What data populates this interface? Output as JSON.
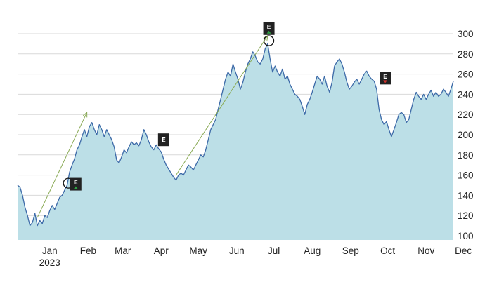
{
  "chart_data": {
    "type": "area",
    "title": "",
    "xlabel": "",
    "ylabel": "",
    "ylim": [
      95,
      310
    ],
    "y_ticks": [
      "100",
      "120",
      "140",
      "160",
      "180",
      "200",
      "220",
      "240",
      "260",
      "280",
      "300"
    ],
    "x_ticks": [
      {
        "label": "Jan",
        "date": "2023-01-15"
      },
      {
        "label": "Feb",
        "date": "2023-02-15"
      },
      {
        "label": "Mar",
        "date": "2023-03-15"
      },
      {
        "label": "Apr",
        "date": "2023-04-15"
      },
      {
        "label": "May",
        "date": "2023-05-15"
      },
      {
        "label": "Jun",
        "date": "2023-06-15"
      },
      {
        "label": "Jul",
        "date": "2023-07-15"
      },
      {
        "label": "Aug",
        "date": "2023-08-15"
      },
      {
        "label": "Sep",
        "date": "2023-09-15"
      },
      {
        "label": "Oct",
        "date": "2023-10-15"
      },
      {
        "label": "Nov",
        "date": "2023-11-15"
      },
      {
        "label": "Dec",
        "date": "2023-12-15"
      }
    ],
    "year_label": "2023",
    "grid": "horizontal",
    "colors": {
      "fill": "#bcdfe7",
      "line": "#3d6aa8",
      "trend": "#8aaa55",
      "up": "#2ea043",
      "down": "#d0312d"
    },
    "series": [
      {
        "values": [
          [
            "2022-12-20",
            150
          ],
          [
            "2022-12-22",
            148
          ],
          [
            "2022-12-24",
            140
          ],
          [
            "2022-12-26",
            128
          ],
          [
            "2022-12-28",
            120
          ],
          [
            "2022-12-30",
            110
          ],
          [
            "2023-01-01",
            113
          ],
          [
            "2023-01-03",
            122
          ],
          [
            "2023-01-05",
            110
          ],
          [
            "2023-01-07",
            115
          ],
          [
            "2023-01-09",
            112
          ],
          [
            "2023-01-11",
            120
          ],
          [
            "2023-01-13",
            118
          ],
          [
            "2023-01-15",
            125
          ],
          [
            "2023-01-17",
            130
          ],
          [
            "2023-01-19",
            126
          ],
          [
            "2023-01-21",
            132
          ],
          [
            "2023-01-23",
            138
          ],
          [
            "2023-01-25",
            140
          ],
          [
            "2023-01-27",
            145
          ],
          [
            "2023-01-29",
            150
          ],
          [
            "2023-01-31",
            163
          ],
          [
            "2023-02-02",
            170
          ],
          [
            "2023-02-04",
            176
          ],
          [
            "2023-02-06",
            185
          ],
          [
            "2023-02-08",
            190
          ],
          [
            "2023-02-10",
            198
          ],
          [
            "2023-02-12",
            205
          ],
          [
            "2023-02-14",
            198
          ],
          [
            "2023-02-16",
            208
          ],
          [
            "2023-02-18",
            212
          ],
          [
            "2023-02-20",
            205
          ],
          [
            "2023-02-22",
            200
          ],
          [
            "2023-02-24",
            210
          ],
          [
            "2023-02-26",
            205
          ],
          [
            "2023-02-28",
            198
          ],
          [
            "2023-03-02",
            205
          ],
          [
            "2023-03-04",
            200
          ],
          [
            "2023-03-06",
            195
          ],
          [
            "2023-03-08",
            188
          ],
          [
            "2023-03-10",
            175
          ],
          [
            "2023-03-12",
            172
          ],
          [
            "2023-03-14",
            178
          ],
          [
            "2023-03-16",
            185
          ],
          [
            "2023-03-18",
            182
          ],
          [
            "2023-03-20",
            188
          ],
          [
            "2023-03-22",
            193
          ],
          [
            "2023-03-24",
            190
          ],
          [
            "2023-03-26",
            192
          ],
          [
            "2023-03-28",
            189
          ],
          [
            "2023-03-30",
            195
          ],
          [
            "2023-04-01",
            205
          ],
          [
            "2023-04-03",
            200
          ],
          [
            "2023-04-05",
            193
          ],
          [
            "2023-04-07",
            188
          ],
          [
            "2023-04-09",
            185
          ],
          [
            "2023-04-11",
            190
          ],
          [
            "2023-04-13",
            186
          ],
          [
            "2023-04-15",
            183
          ],
          [
            "2023-04-17",
            176
          ],
          [
            "2023-04-19",
            170
          ],
          [
            "2023-04-21",
            166
          ],
          [
            "2023-04-23",
            162
          ],
          [
            "2023-04-25",
            158
          ],
          [
            "2023-04-27",
            155
          ],
          [
            "2023-04-29",
            160
          ],
          [
            "2023-05-01",
            162
          ],
          [
            "2023-05-03",
            160
          ],
          [
            "2023-05-05",
            165
          ],
          [
            "2023-05-07",
            170
          ],
          [
            "2023-05-09",
            168
          ],
          [
            "2023-05-11",
            165
          ],
          [
            "2023-05-13",
            170
          ],
          [
            "2023-05-15",
            175
          ],
          [
            "2023-05-17",
            180
          ],
          [
            "2023-05-19",
            178
          ],
          [
            "2023-05-21",
            185
          ],
          [
            "2023-05-23",
            195
          ],
          [
            "2023-05-25",
            205
          ],
          [
            "2023-05-27",
            210
          ],
          [
            "2023-05-29",
            215
          ],
          [
            "2023-05-31",
            225
          ],
          [
            "2023-06-02",
            235
          ],
          [
            "2023-06-04",
            245
          ],
          [
            "2023-06-06",
            255
          ],
          [
            "2023-06-08",
            262
          ],
          [
            "2023-06-10",
            258
          ],
          [
            "2023-06-12",
            270
          ],
          [
            "2023-06-14",
            262
          ],
          [
            "2023-06-16",
            255
          ],
          [
            "2023-06-18",
            245
          ],
          [
            "2023-06-20",
            252
          ],
          [
            "2023-06-22",
            262
          ],
          [
            "2023-06-24",
            270
          ],
          [
            "2023-06-26",
            275
          ],
          [
            "2023-06-28",
            282
          ],
          [
            "2023-06-30",
            278
          ],
          [
            "2023-07-02",
            272
          ],
          [
            "2023-07-04",
            270
          ],
          [
            "2023-07-06",
            275
          ],
          [
            "2023-07-08",
            285
          ],
          [
            "2023-07-10",
            290
          ],
          [
            "2023-07-12",
            275
          ],
          [
            "2023-07-14",
            262
          ],
          [
            "2023-07-16",
            268
          ],
          [
            "2023-07-18",
            262
          ],
          [
            "2023-07-20",
            258
          ],
          [
            "2023-07-22",
            265
          ],
          [
            "2023-07-24",
            255
          ],
          [
            "2023-07-26",
            258
          ],
          [
            "2023-07-28",
            250
          ],
          [
            "2023-07-30",
            245
          ],
          [
            "2023-08-01",
            240
          ],
          [
            "2023-08-03",
            238
          ],
          [
            "2023-08-05",
            235
          ],
          [
            "2023-08-07",
            228
          ],
          [
            "2023-08-09",
            220
          ],
          [
            "2023-08-11",
            230
          ],
          [
            "2023-08-13",
            235
          ],
          [
            "2023-08-15",
            242
          ],
          [
            "2023-08-17",
            250
          ],
          [
            "2023-08-19",
            258
          ],
          [
            "2023-08-21",
            255
          ],
          [
            "2023-08-23",
            250
          ],
          [
            "2023-08-25",
            258
          ],
          [
            "2023-08-27",
            248
          ],
          [
            "2023-08-29",
            242
          ],
          [
            "2023-08-31",
            252
          ],
          [
            "2023-09-02",
            268
          ],
          [
            "2023-09-04",
            272
          ],
          [
            "2023-09-06",
            275
          ],
          [
            "2023-09-08",
            270
          ],
          [
            "2023-09-10",
            262
          ],
          [
            "2023-09-12",
            252
          ],
          [
            "2023-09-14",
            245
          ],
          [
            "2023-09-16",
            248
          ],
          [
            "2023-09-18",
            252
          ],
          [
            "2023-09-20",
            255
          ],
          [
            "2023-09-22",
            250
          ],
          [
            "2023-09-24",
            255
          ],
          [
            "2023-09-26",
            260
          ],
          [
            "2023-09-28",
            263
          ],
          [
            "2023-09-30",
            258
          ],
          [
            "2023-10-02",
            255
          ],
          [
            "2023-10-04",
            253
          ],
          [
            "2023-10-06",
            245
          ],
          [
            "2023-10-08",
            225
          ],
          [
            "2023-10-10",
            215
          ],
          [
            "2023-10-12",
            210
          ],
          [
            "2023-10-14",
            213
          ],
          [
            "2023-10-16",
            205
          ],
          [
            "2023-10-18",
            198
          ],
          [
            "2023-10-20",
            205
          ],
          [
            "2023-10-22",
            212
          ],
          [
            "2023-10-24",
            220
          ],
          [
            "2023-10-26",
            222
          ],
          [
            "2023-10-28",
            220
          ],
          [
            "2023-10-30",
            212
          ],
          [
            "2023-11-01",
            215
          ],
          [
            "2023-11-03",
            225
          ],
          [
            "2023-11-05",
            235
          ],
          [
            "2023-11-07",
            242
          ],
          [
            "2023-11-09",
            238
          ],
          [
            "2023-11-11",
            235
          ],
          [
            "2023-11-13",
            240
          ],
          [
            "2023-11-15",
            235
          ],
          [
            "2023-11-17",
            240
          ],
          [
            "2023-11-19",
            244
          ],
          [
            "2023-11-21",
            238
          ],
          [
            "2023-11-23",
            242
          ],
          [
            "2023-11-25",
            238
          ],
          [
            "2023-11-27",
            240
          ],
          [
            "2023-11-29",
            245
          ],
          [
            "2023-12-01",
            242
          ],
          [
            "2023-12-03",
            238
          ],
          [
            "2023-12-05",
            245
          ],
          [
            "2023-12-07",
            253
          ]
        ]
      }
    ],
    "trend_arrows": [
      {
        "from": [
          "2023-01-05",
          118
        ],
        "to": [
          "2023-02-14",
          222
        ]
      },
      {
        "from": [
          "2023-04-27",
          160
        ],
        "to": [
          "2023-07-10",
          298
        ]
      }
    ],
    "circles": [
      {
        "date": "2023-01-30",
        "value": 152
      },
      {
        "date": "2023-07-11",
        "value": 293
      }
    ],
    "earnings_markers": [
      {
        "label": "E",
        "date": "2023-02-05",
        "value": 151,
        "direction": "up"
      },
      {
        "label": "E",
        "date": "2023-04-17",
        "value": 195,
        "direction": "none"
      },
      {
        "label": "E",
        "date": "2023-07-11",
        "value": 305,
        "direction": "up"
      },
      {
        "label": "E",
        "date": "2023-10-13",
        "value": 256,
        "direction": "down"
      }
    ]
  }
}
